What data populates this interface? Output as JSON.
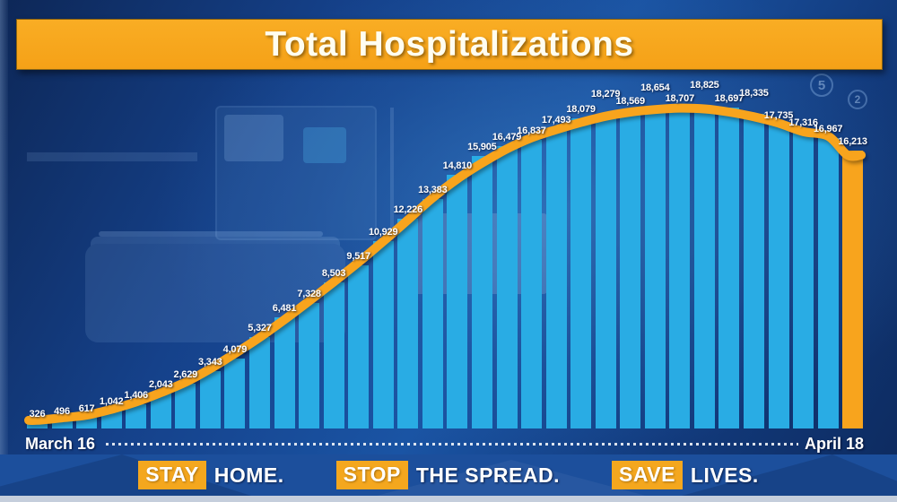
{
  "title": "Total Hospitalizations",
  "x_axis": {
    "start_label": "March 16",
    "end_label": "April 18"
  },
  "slogans": [
    {
      "highlight": "STAY",
      "rest": "HOME."
    },
    {
      "highlight": "STOP",
      "rest": "THE SPREAD."
    },
    {
      "highlight": "SAVE",
      "rest": "LIVES."
    }
  ],
  "background_badges": [
    "5",
    "2"
  ],
  "colors": {
    "bar": "#29ace4",
    "trend_line": "#f8a41d",
    "banner": "#f5a117",
    "band": "#1c4f9c",
    "label_text": "#ffffff"
  },
  "chart_data": {
    "type": "bar",
    "title": "Total Hospitalizations",
    "series_name": "Total hospitalizations",
    "date_range": [
      "March 16",
      "April 18"
    ],
    "values": [
      326,
      496,
      617,
      1042,
      1406,
      2043,
      2629,
      3343,
      4079,
      5327,
      6481,
      7328,
      8503,
      9517,
      10929,
      12226,
      13383,
      14810,
      15905,
      16479,
      16837,
      17493,
      18079,
      18279,
      18569,
      18654,
      18707,
      18825,
      18697,
      18335,
      17735,
      17316,
      16967,
      16213
    ],
    "value_labels": [
      "326",
      "496",
      "617",
      "1,042",
      "1,406",
      "2,043",
      "2,629",
      "3,343",
      "4,079",
      "5,327",
      "6,481",
      "7,328",
      "8,503",
      "9,517",
      "10,929",
      "12,226",
      "13,383",
      "14,810",
      "15,905",
      "16,479",
      "16,837",
      "17,493",
      "18,079",
      "18,279",
      "18,569",
      "18,654",
      "18,707",
      "18,825",
      "18,697",
      "18,335",
      "17,735",
      "17,316",
      "16,967",
      "16,213"
    ],
    "ylim": [
      0,
      18825
    ],
    "grid": false,
    "legend": "none",
    "overlay_line": "smoothed trend of same series",
    "highlight_last_bar": true
  }
}
